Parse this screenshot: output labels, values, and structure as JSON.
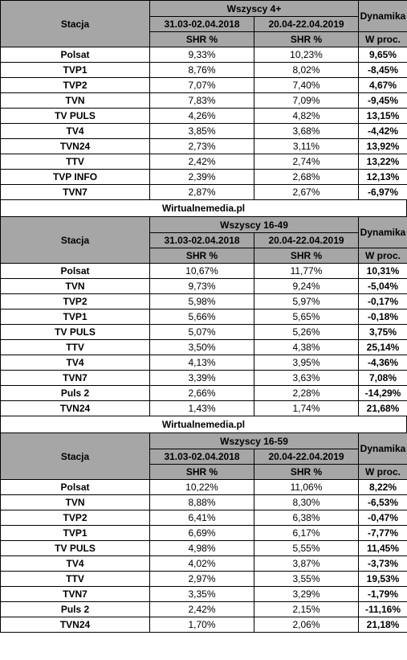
{
  "blocks": [
    {
      "group": "Wszyscy 4+",
      "col_station": "Stacja",
      "col_dynamics": "Dynamika",
      "period1": "31.03-02.04.2018",
      "period2": "20.04-22.04.2019",
      "metric1": "SHR %",
      "metric2": "SHR %",
      "metric3": "W proc.",
      "rows": [
        {
          "station": "Polsat",
          "v1": "9,33%",
          "v2": "10,23%",
          "dyn": "9,65%"
        },
        {
          "station": "TVP1",
          "v1": "8,76%",
          "v2": "8,02%",
          "dyn": "-8,45%"
        },
        {
          "station": "TVP2",
          "v1": "7,07%",
          "v2": "7,40%",
          "dyn": "4,67%"
        },
        {
          "station": "TVN",
          "v1": "7,83%",
          "v2": "7,09%",
          "dyn": "-9,45%"
        },
        {
          "station": "TV PULS",
          "v1": "4,26%",
          "v2": "4,82%",
          "dyn": "13,15%"
        },
        {
          "station": "TV4",
          "v1": "3,85%",
          "v2": "3,68%",
          "dyn": "-4,42%"
        },
        {
          "station": "TVN24",
          "v1": "2,73%",
          "v2": "3,11%",
          "dyn": "13,92%"
        },
        {
          "station": "TTV",
          "v1": "2,42%",
          "v2": "2,74%",
          "dyn": "13,22%"
        },
        {
          "station": "TVP INFO",
          "v1": "2,39%",
          "v2": "2,68%",
          "dyn": "12,13%"
        },
        {
          "station": "TVN7",
          "v1": "2,87%",
          "v2": "2,67%",
          "dyn": "-6,97%"
        }
      ],
      "source": "Wirtualnemedia.pl"
    },
    {
      "group": "Wszyscy 16-49",
      "col_station": "Stacja",
      "col_dynamics": "Dynamika",
      "period1": "31.03-02.04.2018",
      "period2": "20.04-22.04.2019",
      "metric1": "SHR %",
      "metric2": "SHR %",
      "metric3": "W proc.",
      "rows": [
        {
          "station": "Polsat",
          "v1": "10,67%",
          "v2": "11,77%",
          "dyn": "10,31%"
        },
        {
          "station": "TVN",
          "v1": "9,73%",
          "v2": "9,24%",
          "dyn": "-5,04%"
        },
        {
          "station": "TVP2",
          "v1": "5,98%",
          "v2": "5,97%",
          "dyn": "-0,17%"
        },
        {
          "station": "TVP1",
          "v1": "5,66%",
          "v2": "5,65%",
          "dyn": "-0,18%"
        },
        {
          "station": "TV PULS",
          "v1": "5,07%",
          "v2": "5,26%",
          "dyn": "3,75%"
        },
        {
          "station": "TTV",
          "v1": "3,50%",
          "v2": "4,38%",
          "dyn": "25,14%"
        },
        {
          "station": "TV4",
          "v1": "4,13%",
          "v2": "3,95%",
          "dyn": "-4,36%"
        },
        {
          "station": "TVN7",
          "v1": "3,39%",
          "v2": "3,63%",
          "dyn": "7,08%"
        },
        {
          "station": "Puls 2",
          "v1": "2,66%",
          "v2": "2,28%",
          "dyn": "-14,29%"
        },
        {
          "station": "TVN24",
          "v1": "1,43%",
          "v2": "1,74%",
          "dyn": "21,68%"
        }
      ],
      "source": "Wirtualnemedia.pl"
    },
    {
      "group": "Wszyscy 16-59",
      "col_station": "Stacja",
      "col_dynamics": "Dynamika",
      "period1": "31.03-02.04.2018",
      "period2": "20.04-22.04.2019",
      "metric1": "SHR %",
      "metric2": "SHR %",
      "metric3": "W proc.",
      "rows": [
        {
          "station": "Polsat",
          "v1": "10,22%",
          "v2": "11,06%",
          "dyn": "8,22%"
        },
        {
          "station": "TVN",
          "v1": "8,88%",
          "v2": "8,30%",
          "dyn": "-6,53%"
        },
        {
          "station": "TVP2",
          "v1": "6,41%",
          "v2": "6,38%",
          "dyn": "-0,47%"
        },
        {
          "station": "TVP1",
          "v1": "6,69%",
          "v2": "6,17%",
          "dyn": "-7,77%"
        },
        {
          "station": "TV PULS",
          "v1": "4,98%",
          "v2": "5,55%",
          "dyn": "11,45%"
        },
        {
          "station": "TV4",
          "v1": "4,02%",
          "v2": "3,87%",
          "dyn": "-3,73%"
        },
        {
          "station": "TTV",
          "v1": "2,97%",
          "v2": "3,55%",
          "dyn": "19,53%"
        },
        {
          "station": "TVN7",
          "v1": "3,35%",
          "v2": "3,29%",
          "dyn": "-1,79%"
        },
        {
          "station": "Puls 2",
          "v1": "2,42%",
          "v2": "2,15%",
          "dyn": "-11,16%"
        },
        {
          "station": "TVN24",
          "v1": "1,70%",
          "v2": "2,06%",
          "dyn": "21,18%"
        }
      ]
    }
  ],
  "colors": {
    "header_bg": "#a6a6a6",
    "border": "#000000",
    "background": "#ffffff"
  }
}
